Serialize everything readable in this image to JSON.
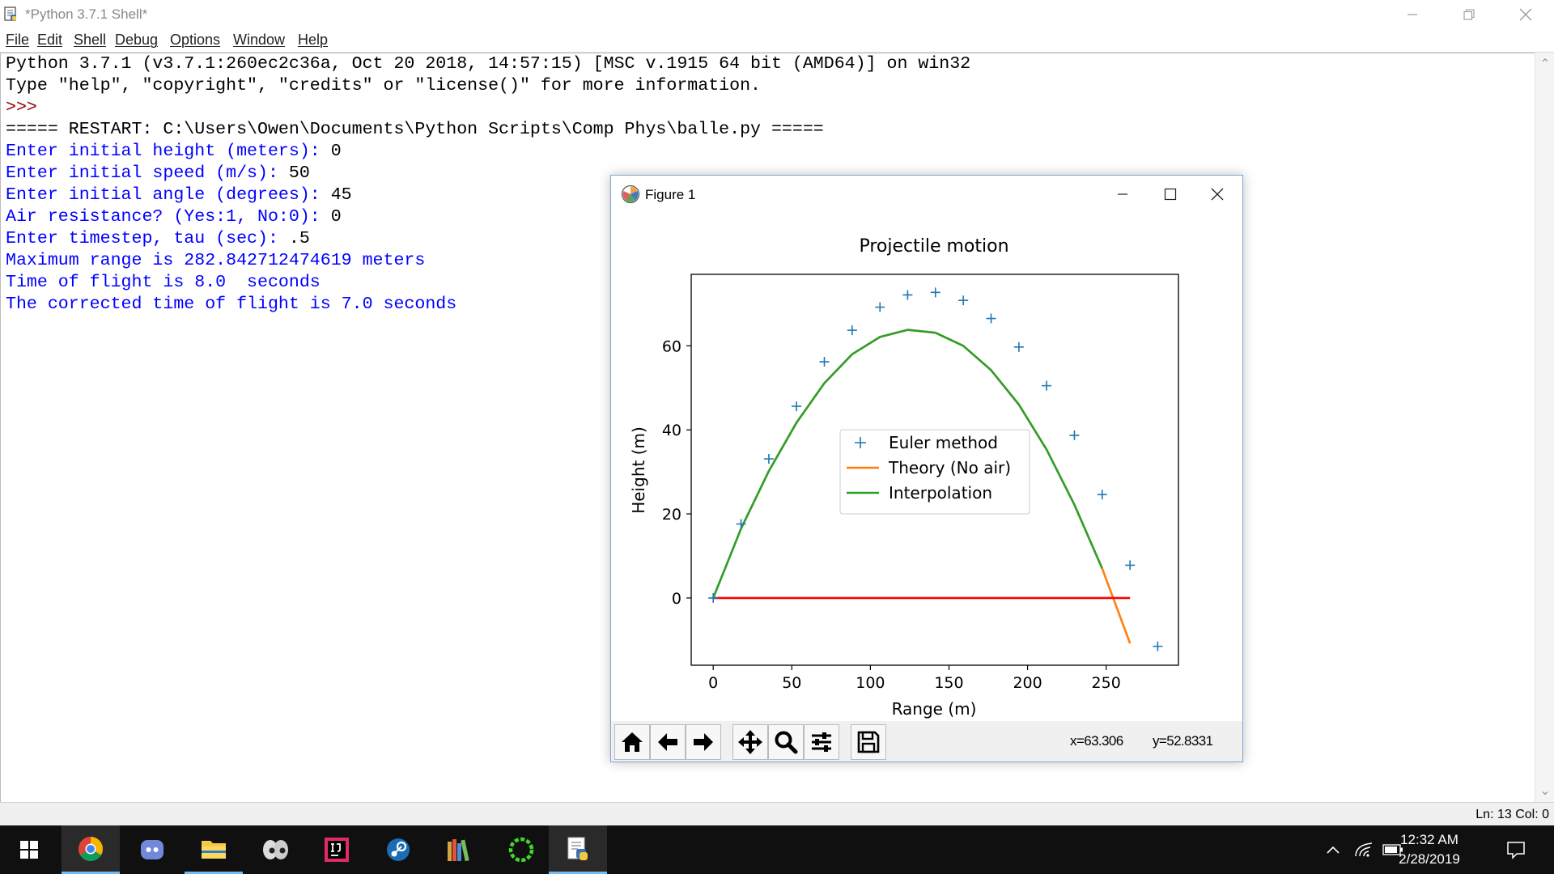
{
  "window": {
    "title": "*Python 3.7.1 Shell*"
  },
  "menu": [
    "File",
    "Edit",
    "Shell",
    "Debug",
    "Options",
    "Window",
    "Help"
  ],
  "shell_lines": [
    {
      "text": "Python 3.7.1 (v3.7.1:260ec2c36a, Oct 20 2018, 14:57:15) [MSC v.1915 64 bit (AMD64)] on win32",
      "color": "black"
    },
    {
      "text": "Type \"help\", \"copyright\", \"credits\" or \"license()\" for more information.",
      "color": "black"
    },
    {
      "text": ">>> ",
      "color": "red"
    },
    {
      "text": "===== RESTART: C:\\Users\\Owen\\Documents\\Python Scripts\\Comp Phys\\balle.py =====",
      "color": "black"
    },
    {
      "prompt": "Enter initial height (meters): ",
      "value": "0"
    },
    {
      "prompt": "Enter initial speed (m/s): ",
      "value": "50"
    },
    {
      "prompt": "Enter initial angle (degrees): ",
      "value": "45"
    },
    {
      "prompt": "Air resistance? (Yes:1, No:0): ",
      "value": "0"
    },
    {
      "prompt": "Enter timestep, tau (sec): ",
      "value": ".5"
    },
    {
      "text": "Maximum range is 282.842712474619 meters",
      "color": "blue"
    },
    {
      "text": "Time of flight is 8.0  seconds",
      "color": "blue"
    },
    {
      "text": "The corrected time of flight is 7.0 seconds",
      "color": "blue"
    }
  ],
  "status": "Ln: 13  Col: 0",
  "figure_window": {
    "title": "Figure 1",
    "coords_x": "x=63.306",
    "coords_y": "y=52.8331"
  },
  "chart_data": {
    "type": "line",
    "title": "Projectile motion",
    "xlabel": "Range (m)",
    "ylabel": "Height (m)",
    "xlim": [
      -14,
      296
    ],
    "ylim": [
      -16,
      77
    ],
    "xticks": [
      0,
      50,
      100,
      150,
      200,
      250
    ],
    "yticks": [
      0,
      20,
      40,
      60
    ],
    "legend_position": "center",
    "colors": {
      "euler": "#1f77b4",
      "theory": "#ff7f0e",
      "interp": "#2ca02c",
      "ground": "#ff0000"
    },
    "series": [
      {
        "name": "Euler method",
        "style": "markers",
        "x": [
          0,
          17.7,
          35.4,
          53.0,
          70.7,
          88.4,
          106.1,
          123.7,
          141.4,
          159.1,
          176.8,
          194.5,
          212.1,
          229.8,
          247.5,
          265.2,
          282.8
        ],
        "y": [
          0,
          17.6,
          33.1,
          45.6,
          56.2,
          63.7,
          69.2,
          72.1,
          72.7,
          70.8,
          66.5,
          59.7,
          50.5,
          38.7,
          24.6,
          7.8,
          -11.5
        ]
      },
      {
        "name": "Theory (No air)",
        "style": "line",
        "x": [
          0,
          17.7,
          35.4,
          53.0,
          70.7,
          88.4,
          106.1,
          123.7,
          141.4,
          159.1,
          176.8,
          194.5,
          212.1,
          229.8,
          247.5,
          265.2
        ],
        "y": [
          0,
          16.5,
          30.2,
          41.7,
          51.1,
          58.0,
          62.1,
          63.8,
          63.1,
          60.0,
          54.2,
          46.0,
          35.3,
          22.2,
          7.0,
          -10.8
        ]
      },
      {
        "name": "Interpolation",
        "style": "line",
        "x": [
          0,
          17.7,
          35.4,
          53.0,
          70.7,
          88.4,
          106.1,
          123.7,
          141.4,
          159.1,
          176.8,
          194.5,
          212.1,
          229.8,
          247.5
        ],
        "y": [
          0,
          16.5,
          30.2,
          41.7,
          51.1,
          58.0,
          62.1,
          63.8,
          63.1,
          60.0,
          54.2,
          46.0,
          35.3,
          22.2,
          7.0
        ]
      },
      {
        "name": "",
        "style": "ground",
        "x": [
          0,
          265.2
        ],
        "y": [
          0,
          0
        ]
      }
    ]
  },
  "taskbar": {
    "apps": [
      "start-icon",
      "chrome-icon",
      "discord-icon",
      "file-explorer-icon",
      "eyes-app-icon",
      "intellij-icon",
      "steam-icon",
      "library-icon",
      "razer-icon",
      "python-idle-icon"
    ],
    "time": "12:32 AM",
    "date": "2/28/2019"
  }
}
